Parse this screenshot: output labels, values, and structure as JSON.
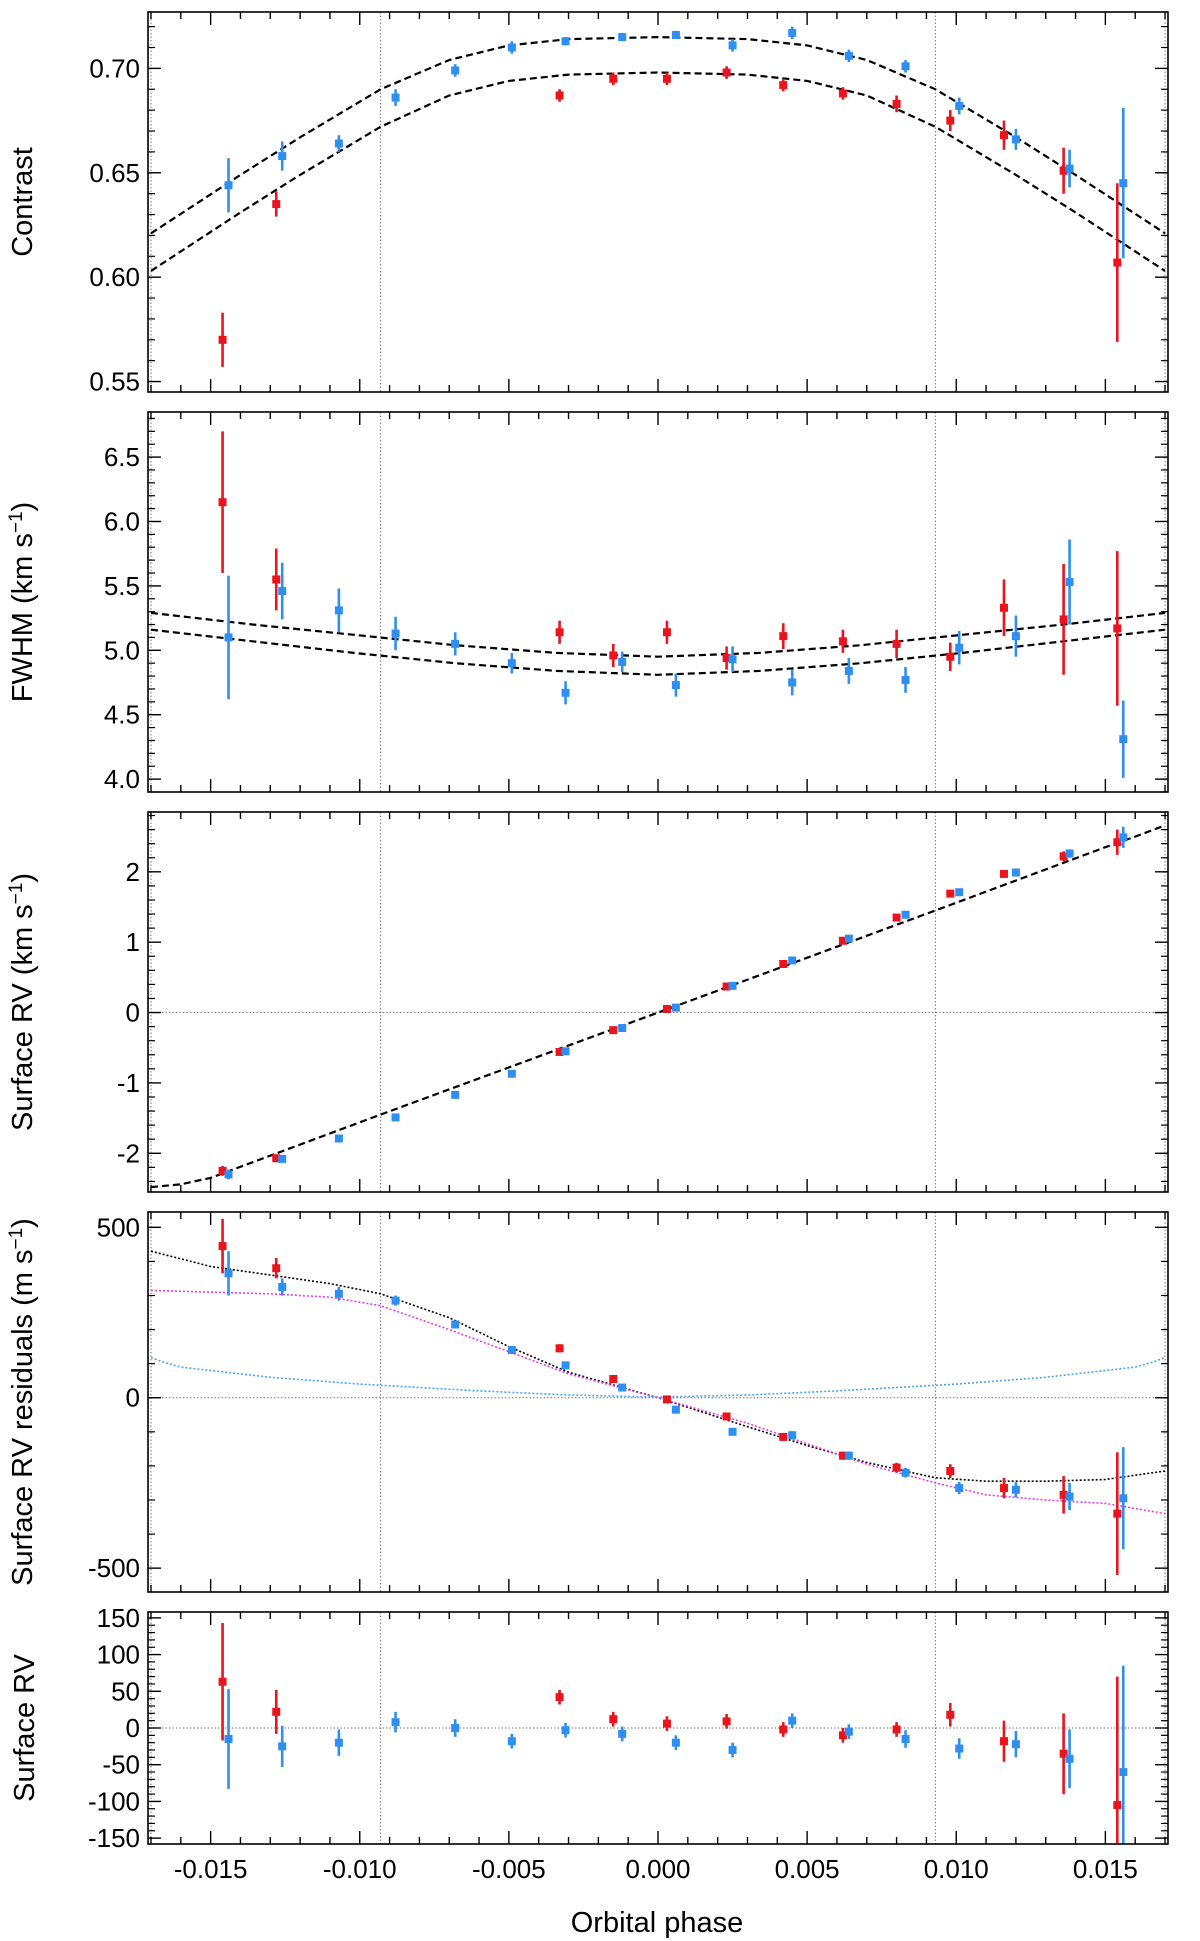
{
  "chart_data": {
    "type": "scatter",
    "xlabel": "Orbital phase",
    "xlim": [
      -0.0171,
      0.0171
    ],
    "x_ticks": [
      "-0.015",
      "-0.010",
      "-0.005",
      "0.000",
      "0.005",
      "0.010",
      "0.015"
    ],
    "x_tick_values": [
      -0.015,
      -0.01,
      -0.005,
      0.0,
      0.005,
      0.01,
      0.015
    ],
    "contact_phases": [
      -0.017,
      -0.0093,
      0.0093,
      0.017
    ],
    "colors": {
      "red": "#e8141e",
      "blue": "#2f8ff0",
      "model": "#000000",
      "magenta": "#e63ce6",
      "lightblue": "#4aa3ee",
      "ref": "#777777"
    },
    "panels": [
      {
        "id": "contrast",
        "ylabel": "Contrast",
        "ylim": [
          0.545,
          0.727
        ],
        "yticks": [
          0.55,
          0.6,
          0.65,
          0.7
        ],
        "ytick_labels": [
          "0.55",
          "0.60",
          "0.65",
          "0.70"
        ],
        "series": [
          {
            "name": "red",
            "x": [
              -0.0146,
              -0.0128,
              -0.0033,
              -0.0015,
              0.0003,
              0.0023,
              0.0042,
              0.0062,
              0.008,
              0.0098,
              0.0116,
              0.0136,
              0.0154
            ],
            "y": [
              0.57,
              0.635,
              0.687,
              0.695,
              0.695,
              0.698,
              0.692,
              0.688,
              0.683,
              0.675,
              0.668,
              0.651,
              0.607
            ],
            "err": [
              0.013,
              0.006,
              0.003,
              0.003,
              0.003,
              0.003,
              0.003,
              0.003,
              0.004,
              0.005,
              0.007,
              0.011,
              0.038
            ]
          },
          {
            "name": "blue",
            "x": [
              -0.0144,
              -0.0126,
              -0.0107,
              -0.0088,
              -0.0068,
              -0.0049,
              -0.0031,
              -0.0012,
              0.0006,
              0.0025,
              0.0045,
              0.0064,
              0.0083,
              0.0101,
              0.012,
              0.0138,
              0.0156
            ],
            "y": [
              0.644,
              0.658,
              0.664,
              0.686,
              0.699,
              0.71,
              0.713,
              0.715,
              0.716,
              0.711,
              0.717,
              0.706,
              0.701,
              0.682,
              0.666,
              0.652,
              0.645
            ],
            "err": [
              0.013,
              0.007,
              0.004,
              0.004,
              0.003,
              0.003,
              0.002,
              0.002,
              0.002,
              0.003,
              0.003,
              0.003,
              0.003,
              0.004,
              0.005,
              0.009,
              0.036
            ]
          }
        ],
        "models": [
          {
            "name": "blue-model",
            "style": "dashed",
            "x": [
              -0.017,
              -0.014,
              -0.012,
              -0.0093,
              -0.007,
              -0.005,
              -0.003,
              0.0,
              0.003,
              0.005,
              0.007,
              0.0093,
              0.012,
              0.014,
              0.017
            ],
            "y": [
              0.621,
              0.649,
              0.667,
              0.69,
              0.704,
              0.711,
              0.714,
              0.715,
              0.714,
              0.711,
              0.704,
              0.69,
              0.667,
              0.649,
              0.621
            ]
          },
          {
            "name": "red-model",
            "style": "dashed",
            "x": [
              -0.017,
              -0.014,
              -0.012,
              -0.0093,
              -0.007,
              -0.005,
              -0.003,
              0.0,
              0.003,
              0.005,
              0.007,
              0.0093,
              0.012,
              0.014,
              0.017
            ],
            "y": [
              0.603,
              0.631,
              0.649,
              0.672,
              0.687,
              0.694,
              0.697,
              0.698,
              0.697,
              0.694,
              0.687,
              0.672,
              0.649,
              0.631,
              0.603
            ]
          }
        ]
      },
      {
        "id": "fwhm",
        "ylabel": "FWHM (km s",
        "ylabel_sup": "−1",
        "ylabel_tail": ")",
        "ylim": [
          3.9,
          6.85
        ],
        "yticks": [
          4.0,
          4.5,
          5.0,
          5.5,
          6.0,
          6.5
        ],
        "ytick_labels": [
          "4.0",
          "4.5",
          "5.0",
          "5.5",
          "6.0",
          "6.5"
        ],
        "series": [
          {
            "name": "red",
            "x": [
              -0.0146,
              -0.0128,
              -0.0033,
              -0.0015,
              0.0003,
              0.0023,
              0.0042,
              0.0062,
              0.008,
              0.0098,
              0.0116,
              0.0136,
              0.0154
            ],
            "y": [
              6.15,
              5.55,
              5.14,
              4.96,
              5.14,
              4.94,
              5.11,
              5.07,
              5.05,
              4.95,
              5.33,
              5.24,
              5.17
            ],
            "err": [
              0.55,
              0.24,
              0.09,
              0.09,
              0.09,
              0.09,
              0.1,
              0.09,
              0.11,
              0.11,
              0.22,
              0.43,
              0.6
            ]
          },
          {
            "name": "blue",
            "x": [
              -0.0144,
              -0.0126,
              -0.0107,
              -0.0088,
              -0.0068,
              -0.0049,
              -0.0031,
              -0.0012,
              0.0006,
              0.0025,
              0.0045,
              0.0064,
              0.0083,
              0.0101,
              0.012,
              0.0138,
              0.0156
            ],
            "y": [
              5.1,
              5.46,
              5.31,
              5.13,
              5.05,
              4.9,
              4.67,
              4.91,
              4.73,
              4.93,
              4.75,
              4.84,
              4.77,
              5.02,
              5.11,
              5.53,
              4.31
            ],
            "err": [
              0.48,
              0.22,
              0.17,
              0.13,
              0.09,
              0.08,
              0.09,
              0.08,
              0.09,
              0.1,
              0.1,
              0.1,
              0.1,
              0.13,
              0.16,
              0.33,
              0.3
            ]
          }
        ],
        "models": [
          {
            "name": "red-model",
            "style": "dashed",
            "x": [
              -0.017,
              -0.0136,
              -0.0102,
              -0.0068,
              -0.0034,
              0.0,
              0.0034,
              0.0068,
              0.0102,
              0.0136,
              0.017
            ],
            "y": [
              5.29,
              5.2,
              5.12,
              5.04,
              4.98,
              4.95,
              4.98,
              5.04,
              5.12,
              5.2,
              5.29
            ]
          },
          {
            "name": "blue-model",
            "style": "dashed",
            "x": [
              -0.017,
              -0.0136,
              -0.0102,
              -0.0068,
              -0.0034,
              0.0,
              0.0034,
              0.0068,
              0.0102,
              0.0136,
              0.017
            ],
            "y": [
              5.16,
              5.07,
              4.98,
              4.9,
              4.84,
              4.81,
              4.84,
              4.9,
              4.98,
              5.07,
              5.16
            ]
          }
        ]
      },
      {
        "id": "surface-rv",
        "ylabel": "Surface RV (km s",
        "ylabel_sup": "−1",
        "ylabel_tail": ")",
        "ylim": [
          -2.55,
          2.85
        ],
        "yticks": [
          -2,
          -1,
          0,
          1,
          2
        ],
        "ytick_labels": [
          "-2",
          "-1",
          "0",
          "1",
          "2"
        ],
        "zero_line": true,
        "series": [
          {
            "name": "red",
            "x": [
              -0.0146,
              -0.0128,
              -0.0033,
              -0.0015,
              0.0003,
              0.0023,
              0.0042,
              0.0062,
              0.008,
              0.0098,
              0.0116,
              0.0136,
              0.0154
            ],
            "y": [
              -2.25,
              -2.07,
              -0.56,
              -0.25,
              0.05,
              0.37,
              0.69,
              1.02,
              1.35,
              1.69,
              1.97,
              2.22,
              2.42
            ],
            "err": [
              0.07,
              0.04,
              0.03,
              0.03,
              0.03,
              0.03,
              0.03,
              0.03,
              0.03,
              0.04,
              0.05,
              0.07,
              0.18
            ]
          },
          {
            "name": "blue",
            "x": [
              -0.0144,
              -0.0126,
              -0.0107,
              -0.0088,
              -0.0068,
              -0.0049,
              -0.0031,
              -0.0012,
              0.0006,
              0.0025,
              0.0045,
              0.0064,
              0.0083,
              0.0101,
              0.012,
              0.0138,
              0.0156
            ],
            "y": [
              -2.3,
              -2.08,
              -1.79,
              -1.49,
              -1.17,
              -0.87,
              -0.55,
              -0.22,
              0.07,
              0.38,
              0.74,
              1.05,
              1.39,
              1.71,
              1.99,
              2.26,
              2.49
            ],
            "err": [
              0.07,
              0.04,
              0.03,
              0.03,
              0.02,
              0.02,
              0.02,
              0.02,
              0.02,
              0.02,
              0.02,
              0.02,
              0.03,
              0.03,
              0.04,
              0.06,
              0.15
            ]
          }
        ],
        "models": [
          {
            "name": "model",
            "style": "dashed",
            "x": [
              -0.017,
              -0.016,
              -0.015,
              -0.0093,
              0.0,
              0.0093,
              0.015,
              0.016,
              0.017
            ],
            "y": [
              -2.48,
              -2.44,
              -2.35,
              -1.45,
              0.0,
              1.45,
              2.35,
              2.5,
              2.66
            ]
          }
        ]
      },
      {
        "id": "rv-residuals",
        "ylabel": "Surface RV residuals (m s",
        "ylabel_sup": "−1",
        "ylabel_tail": ")",
        "ylim": [
          -570,
          545
        ],
        "yticks": [
          -500,
          0,
          500
        ],
        "ytick_labels": [
          "-500",
          "0",
          "500"
        ],
        "zero_line": true,
        "series": [
          {
            "name": "red",
            "x": [
              -0.0146,
              -0.0128,
              -0.0033,
              -0.0015,
              0.0003,
              0.0023,
              0.0042,
              0.0062,
              0.008,
              0.0098,
              0.0116,
              0.0136,
              0.0154
            ],
            "y": [
              445,
              380,
              145,
              55,
              -5,
              -55,
              -115,
              -170,
              -205,
              -215,
              -265,
              -285,
              -340
            ],
            "err": [
              80,
              30,
              12,
              12,
              10,
              10,
              10,
              12,
              14,
              20,
              30,
              55,
              180
            ]
          },
          {
            "name": "blue",
            "x": [
              -0.0144,
              -0.0126,
              -0.0107,
              -0.0088,
              -0.0068,
              -0.0049,
              -0.0031,
              -0.0012,
              0.0006,
              0.0025,
              0.0045,
              0.0064,
              0.0083,
              0.0101,
              0.012,
              0.0138,
              0.0156
            ],
            "y": [
              365,
              325,
              305,
              285,
              215,
              140,
              95,
              30,
              -35,
              -100,
              -110,
              -170,
              -220,
              -265,
              -270,
              -290,
              -295
            ],
            "err": [
              65,
              25,
              20,
              15,
              12,
              10,
              10,
              10,
              10,
              10,
              12,
              12,
              14,
              18,
              22,
              40,
              150
            ]
          }
        ],
        "models": [
          {
            "name": "total-model",
            "style": "dotted",
            "color": "model",
            "x": [
              -0.017,
              -0.015,
              -0.013,
              -0.011,
              -0.0093,
              -0.007,
              -0.005,
              -0.003,
              0.0,
              0.003,
              0.005,
              0.007,
              0.0093,
              0.011,
              0.013,
              0.015,
              0.017
            ],
            "y": [
              430,
              385,
              360,
              335,
              305,
              235,
              150,
              75,
              0,
              -85,
              -140,
              -190,
              -235,
              -245,
              -245,
              -240,
              -215
            ]
          },
          {
            "name": "magenta-model",
            "style": "dotted",
            "color": "magenta",
            "x": [
              -0.017,
              -0.015,
              -0.013,
              -0.011,
              -0.0093,
              -0.007,
              -0.005,
              -0.003,
              0.0,
              0.003,
              0.005,
              0.007,
              0.0093,
              0.011,
              0.013,
              0.015,
              0.017
            ],
            "y": [
              315,
              310,
              305,
              295,
              270,
              200,
              135,
              70,
              0,
              -75,
              -135,
              -195,
              -250,
              -285,
              -300,
              -310,
              -340
            ]
          },
          {
            "name": "lightblue-model",
            "style": "dotted",
            "color": "lightblue",
            "x": [
              -0.017,
              -0.0166,
              -0.016,
              -0.013,
              -0.01,
              -0.006,
              -0.003,
              0.0,
              0.003,
              0.006,
              0.01,
              0.013,
              0.016,
              0.0166,
              0.017
            ],
            "y": [
              118,
              105,
              90,
              60,
              40,
              20,
              8,
              2,
              8,
              20,
              40,
              60,
              90,
              105,
              118
            ]
          }
        ]
      },
      {
        "id": "residuals",
        "ylabel": "Surface RV",
        "ylim": [
          -158,
          158
        ],
        "yticks": [
          -150,
          -100,
          -50,
          0,
          50,
          100,
          150
        ],
        "ytick_labels": [
          "-150",
          "-100",
          "-50",
          "0",
          "50",
          "100",
          "150"
        ],
        "zero_line": true,
        "series": [
          {
            "name": "red",
            "x": [
              -0.0146,
              -0.0128,
              -0.0033,
              -0.0015,
              0.0003,
              0.0023,
              0.0042,
              0.0062,
              0.008,
              0.0098,
              0.0116,
              0.0136,
              0.0154
            ],
            "y": [
              63,
              22,
              42,
              12,
              6,
              9,
              -2,
              -10,
              -2,
              18,
              -18,
              -35,
              -105
            ],
            "err": [
              80,
              30,
              10,
              10,
              10,
              10,
              10,
              10,
              10,
              16,
              28,
              55,
              175
            ]
          },
          {
            "name": "blue",
            "x": [
              -0.0144,
              -0.0126,
              -0.0107,
              -0.0088,
              -0.0068,
              -0.0049,
              -0.0031,
              -0.0012,
              0.0006,
              0.0025,
              0.0045,
              0.0064,
              0.0083,
              0.0101,
              0.012,
              0.0138,
              0.0156
            ],
            "y": [
              -15,
              -25,
              -20,
              8,
              0,
              -18,
              -3,
              -8,
              -20,
              -30,
              10,
              -5,
              -15,
              -28,
              -22,
              -42,
              -60
            ],
            "err": [
              68,
              28,
              18,
              14,
              12,
              10,
              10,
              10,
              10,
              10,
              10,
              10,
              12,
              14,
              18,
              40,
              145
            ]
          }
        ],
        "models": []
      }
    ]
  }
}
